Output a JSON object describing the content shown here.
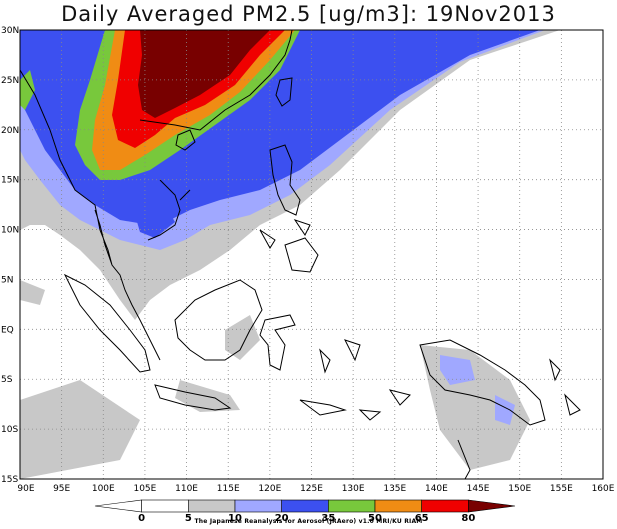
{
  "title": "Daily Averaged PM2.5 [ug/m3]: 19Nov2013",
  "credit": "The Japanese Reanalysis for Aerosol (JRAero) v1.0 MRI/KU RIAM",
  "map": {
    "lon_range": [
      90,
      160
    ],
    "lat_range": [
      -15,
      30
    ],
    "grid": "dotted",
    "x_ticks": [
      "90E",
      "95E",
      "100E",
      "105E",
      "110E",
      "115E",
      "120E",
      "125E",
      "130E",
      "135E",
      "140E",
      "145E",
      "150E",
      "155E",
      "160E"
    ],
    "y_ticks": [
      "30N",
      "25N",
      "20N",
      "15N",
      "10N",
      "5N",
      "EQ",
      "5S",
      "10S",
      "15S"
    ]
  },
  "colorbar": {
    "labels": [
      "0",
      "5",
      "10",
      "20",
      "35",
      "50",
      "65",
      "80"
    ],
    "colors": [
      "#ffffff",
      "#ffffff",
      "#c8c8c8",
      "#a0a8ff",
      "#3c50f0",
      "#78c83c",
      "#f08c14",
      "#f00000",
      "#780000"
    ]
  },
  "colors": {
    "level_5_10": "#c8c8c8",
    "level_10_20": "#a0a8ff",
    "level_20_35": "#3c50f0",
    "level_35_50": "#78c83c",
    "level_50_65": "#f08c14",
    "level_65_80": "#f00000",
    "level_80_plus": "#780000"
  }
}
